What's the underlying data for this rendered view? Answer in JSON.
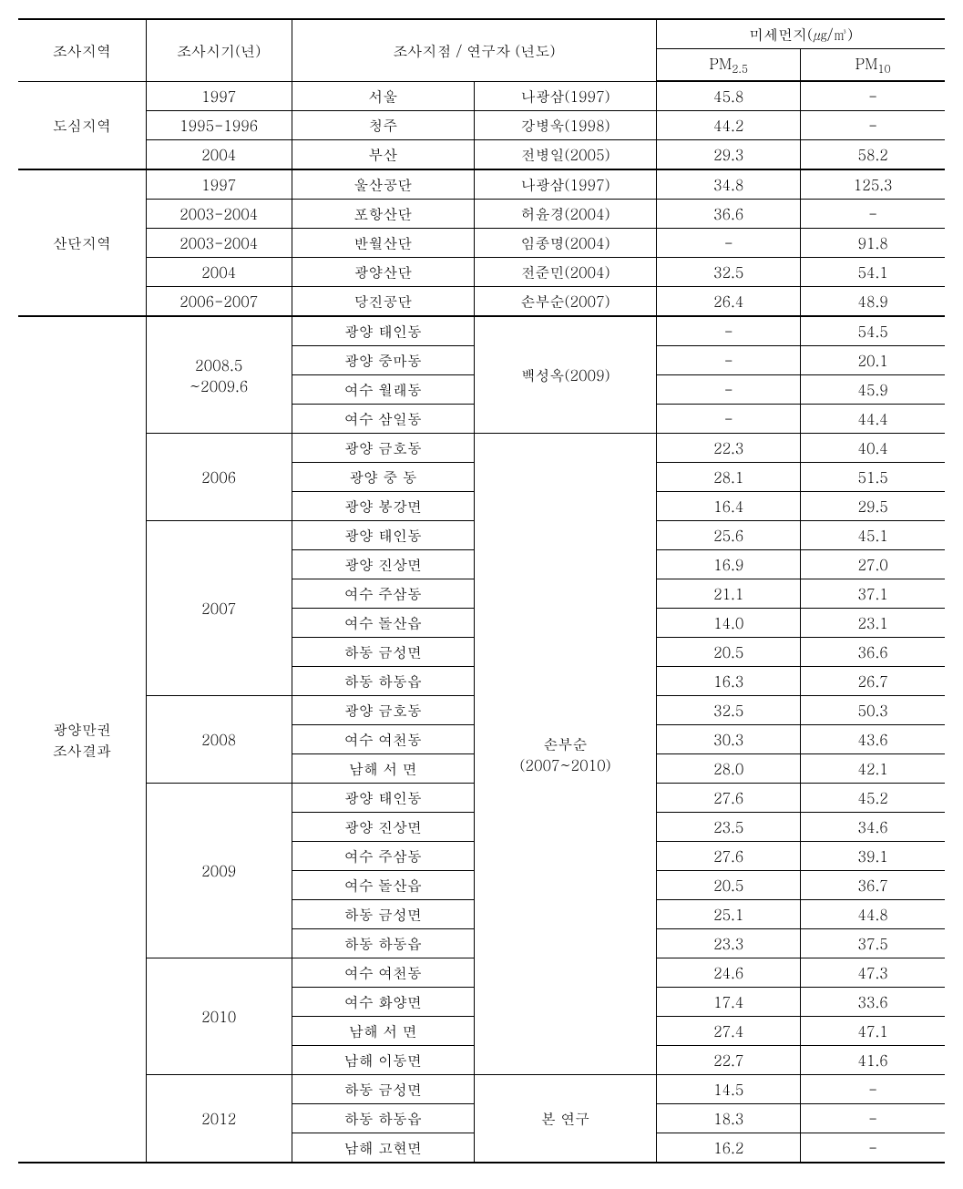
{
  "headers": {
    "region": "조사지역",
    "period": "조사시기(년)",
    "location_researcher": "조사지점 / 연구자 (년도)",
    "pm_group": "미세먼지(㎍/㎥)",
    "pm25": "PM",
    "pm25_sub": "2.5",
    "pm10": "PM",
    "pm10_sub": "10"
  },
  "groups": [
    {
      "region": "도심지역",
      "rows": [
        {
          "period": "1997",
          "loc": "서울",
          "res": "나광삼(1997)",
          "pm25": "45.8",
          "pm10": "-"
        },
        {
          "period": "1995-1996",
          "loc": "청주",
          "res": "강병욱(1998)",
          "pm25": "44.2",
          "pm10": "-"
        },
        {
          "period": "2004",
          "loc": "부산",
          "res": "전병일(2005)",
          "pm25": "29.3",
          "pm10": "58.2"
        }
      ]
    },
    {
      "region": "산단지역",
      "rows": [
        {
          "period": "1997",
          "loc": "울산공단",
          "res": "나광삼(1997)",
          "pm25": "34.8",
          "pm10": "125.3"
        },
        {
          "period": "2003-2004",
          "loc": "포항산단",
          "res": "허윤경(2004)",
          "pm25": "36.6",
          "pm10": "-"
        },
        {
          "period": "2003-2004",
          "loc": "반월산단",
          "res": "임종명(2004)",
          "pm25": "-",
          "pm10": "91.8"
        },
        {
          "period": "2004",
          "loc": "광양산단",
          "res": "전준민(2004)",
          "pm25": "32.5",
          "pm10": "54.1"
        },
        {
          "period": "2006-2007",
          "loc": "당진공단",
          "res": "손부순(2007)",
          "pm25": "26.4",
          "pm10": "48.9"
        }
      ]
    }
  ],
  "gwangyang": {
    "region_line1": "광양만권",
    "region_line2": "조사결과",
    "sub1": {
      "period_line1": "2008.5",
      "period_line2": "~2009.6",
      "researcher": "백성옥(2009)",
      "rows": [
        {
          "loc": "광양 태인동",
          "pm25": "-",
          "pm10": "54.5"
        },
        {
          "loc": "광양 중마동",
          "pm25": "-",
          "pm10": "20.1"
        },
        {
          "loc": "여수 월래동",
          "pm25": "-",
          "pm10": "45.9"
        },
        {
          "loc": "여수 삼일동",
          "pm25": "-",
          "pm10": "44.4"
        }
      ]
    },
    "sub2": {
      "researcher_line1": "손부순",
      "researcher_line2": "(2007~2010)",
      "periods": [
        {
          "period": "2006",
          "rows": [
            {
              "loc": "광양 금호동",
              "pm25": "22.3",
              "pm10": "40.4"
            },
            {
              "loc": "광양 중 동",
              "pm25": "28.1",
              "pm10": "51.5",
              "spaced": true
            },
            {
              "loc": "광양 봉강면",
              "pm25": "16.4",
              "pm10": "29.5"
            }
          ]
        },
        {
          "period": "2007",
          "rows": [
            {
              "loc": "광양 태인동",
              "pm25": "25.6",
              "pm10": "45.1"
            },
            {
              "loc": "광양 진상면",
              "pm25": "16.9",
              "pm10": "27.0"
            },
            {
              "loc": "여수 주삼동",
              "pm25": "21.1",
              "pm10": "37.1"
            },
            {
              "loc": "여수 돌산읍",
              "pm25": "14.0",
              "pm10": "23.1"
            },
            {
              "loc": "하동 금성면",
              "pm25": "20.5",
              "pm10": "36.6"
            },
            {
              "loc": "하동 하동읍",
              "pm25": "16.3",
              "pm10": "26.7"
            }
          ]
        },
        {
          "period": "2008",
          "rows": [
            {
              "loc": "광양 금호동",
              "pm25": "32.5",
              "pm10": "50.3"
            },
            {
              "loc": "여수 여천동",
              "pm25": "30.3",
              "pm10": "43.6"
            },
            {
              "loc": "남해 서 면",
              "pm25": "28.0",
              "pm10": "42.1",
              "spaced": true
            }
          ]
        },
        {
          "period": "2009",
          "rows": [
            {
              "loc": "광양 태인동",
              "pm25": "27.6",
              "pm10": "45.2"
            },
            {
              "loc": "광양 진상면",
              "pm25": "23.5",
              "pm10": "34.6"
            },
            {
              "loc": "여수 주삼동",
              "pm25": "27.6",
              "pm10": "39.1"
            },
            {
              "loc": "여수 돌산읍",
              "pm25": "20.5",
              "pm10": "36.7"
            },
            {
              "loc": "하동 금성면",
              "pm25": "25.1",
              "pm10": "44.8"
            },
            {
              "loc": "하동 하동읍",
              "pm25": "23.3",
              "pm10": "37.5"
            }
          ]
        },
        {
          "period": "2010",
          "rows": [
            {
              "loc": "여수 여천동",
              "pm25": "24.6",
              "pm10": "47.3"
            },
            {
              "loc": "여수 화양면",
              "pm25": "17.4",
              "pm10": "33.6"
            },
            {
              "loc": "남해 서 면",
              "pm25": "27.4",
              "pm10": "47.1",
              "spaced": true
            },
            {
              "loc": "남해 이동면",
              "pm25": "22.7",
              "pm10": "41.6"
            }
          ]
        }
      ]
    },
    "sub3": {
      "period": "2012",
      "researcher": "본 연구",
      "rows": [
        {
          "loc": "하동 금성면",
          "pm25": "14.5",
          "pm10": "-"
        },
        {
          "loc": "하동 하동읍",
          "pm25": "18.3",
          "pm10": "-"
        },
        {
          "loc": "남해 고현면",
          "pm25": "16.2",
          "pm10": "-"
        }
      ]
    }
  },
  "style": {
    "font_size": 16,
    "border_color": "#000000",
    "background": "#ffffff"
  }
}
